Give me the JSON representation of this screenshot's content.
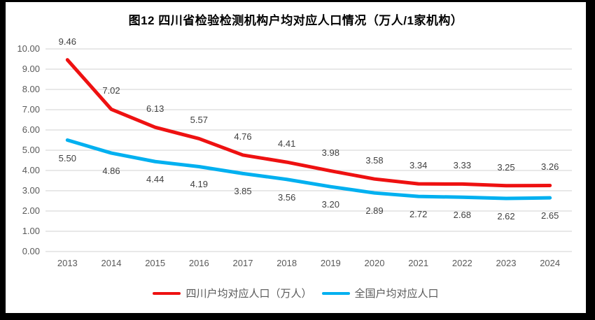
{
  "frame": {
    "background": "#000000",
    "page_background": "#ffffff"
  },
  "chart_data": {
    "type": "line",
    "title": "图12 四川省检验检测机构户均对应人口情况（万人/1家机构）",
    "categories": [
      "2013",
      "2014",
      "2015",
      "2016",
      "2017",
      "2018",
      "2019",
      "2020",
      "2021",
      "2022",
      "2023",
      "2024"
    ],
    "series": [
      {
        "name": "四川户均对应人口（万人）",
        "color": "#ee1111",
        "label_side": "above",
        "values": [
          9.46,
          7.02,
          6.13,
          5.57,
          4.76,
          4.41,
          3.98,
          3.58,
          3.34,
          3.33,
          3.25,
          3.26
        ]
      },
      {
        "name": "全国户均对应人口",
        "color": "#00b0f0",
        "label_side": "below",
        "values": [
          5.5,
          4.86,
          4.44,
          4.19,
          3.85,
          3.56,
          3.2,
          2.89,
          2.72,
          2.68,
          2.62,
          2.65
        ]
      }
    ],
    "y_axis": {
      "min": 0,
      "max": 10,
      "step": 1,
      "tick_labels": [
        "0.00",
        "1.00",
        "2.00",
        "3.00",
        "4.00",
        "5.00",
        "6.00",
        "7.00",
        "8.00",
        "9.00",
        "10.00"
      ]
    },
    "grid": true,
    "legend_position": "bottom",
    "styles": {
      "gridline": "#d9d9d9",
      "axis_text": "#595959",
      "data_label": "#404040",
      "title_color": "#000000",
      "line_width": 5
    }
  }
}
